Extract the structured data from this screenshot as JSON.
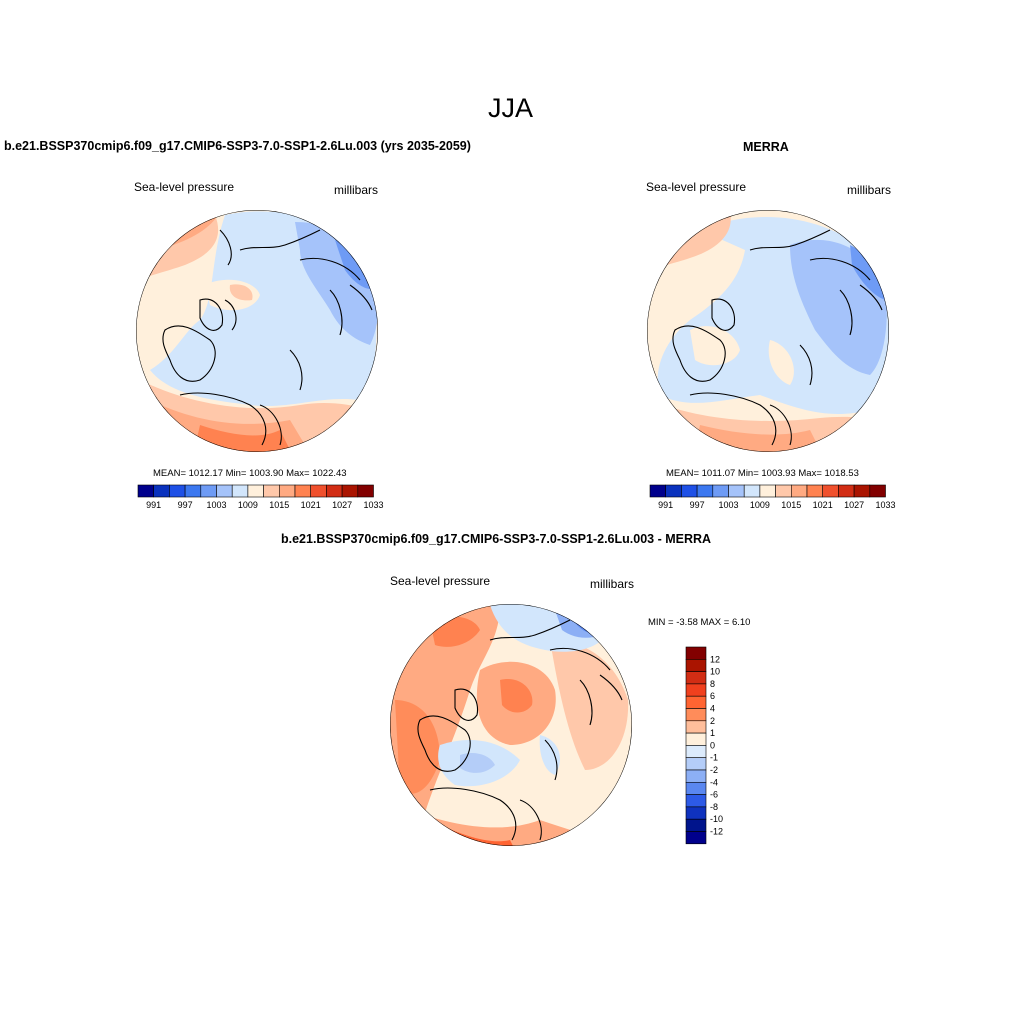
{
  "figure": {
    "title": "JJA"
  },
  "panels": [
    {
      "id": "model",
      "title": "b.e21.BSSP370cmip6.f09_g17.CMIP6-SSP3-7.0-SSP1-2.6Lu.003 (yrs 2035-2059)",
      "left_label": "Sea-level pressure",
      "right_label": "millibars",
      "stats": "MEAN= 1012.17  Min= 1003.90  Max= 1022.43"
    },
    {
      "id": "obs",
      "title": "MERRA",
      "left_label": "Sea-level pressure",
      "right_label": "millibars",
      "stats": "MEAN= 1011.07  Min= 1003.93  Max= 1018.53"
    },
    {
      "id": "diff",
      "title": "b.e21.BSSP370cmip6.f09_g17.CMIP6-SSP3-7.0-SSP1-2.6Lu.003 - MERRA",
      "left_label": "Sea-level pressure",
      "right_label": "millibars",
      "stats": "MIN =  -3.58 MAX =   6.10"
    }
  ],
  "colorbar_abs": {
    "tick_labels": [
      "991",
      "997",
      "1003",
      "1009",
      "1015",
      "1021",
      "1027",
      "1033"
    ],
    "colors": [
      "#00008c",
      "#0a32be",
      "#1e50e6",
      "#3c78f0",
      "#6e9bf5",
      "#a5c3fa",
      "#d2e6fc",
      "#fff0dc",
      "#ffc8aa",
      "#ffaa82",
      "#ff8250",
      "#f0502d",
      "#d22d14",
      "#aa1400",
      "#820000"
    ]
  },
  "colorbar_diff": {
    "tick_labels": [
      "12",
      "10",
      "8",
      "6",
      "4",
      "2",
      "1",
      "0",
      "-1",
      "-2",
      "-4",
      "-6",
      "-8",
      "-10",
      "-12"
    ],
    "colors": [
      "#820000",
      "#aa1400",
      "#d22d14",
      "#f0401e",
      "#ff6432",
      "#ff8c5a",
      "#ffbe9b",
      "#fff0dc",
      "#dcebfc",
      "#b4cdf8",
      "#8caff5",
      "#5a87f0",
      "#2d5ae6",
      "#0f32be",
      "#00148c",
      "#00008c"
    ]
  },
  "map_palette": {
    "land_outline": "#000000",
    "disk_border": "#000000"
  }
}
